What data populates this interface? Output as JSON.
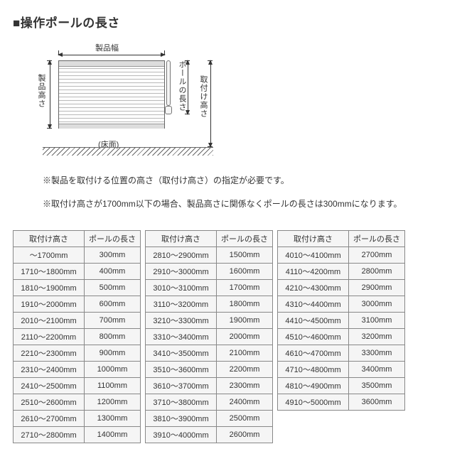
{
  "title": "■操作ポールの長さ",
  "diagram": {
    "label_width": "製品幅",
    "label_height": "製品高さ",
    "label_pole_length": "ポールの長さ",
    "label_mount_height": "取付け高さ",
    "label_floor": "(床面)"
  },
  "notes": {
    "n1": "※製品を取付ける位置の高さ（取付け高さ）の指定が必要です。",
    "n2": "※取付け高さが1700mm以下の場合、製品高さに関係なくポールの長さは300mmになります。"
  },
  "table_headers": {
    "col1": "取付け高さ",
    "col2": "ポールの長さ"
  },
  "table1": [
    {
      "h": "〜1700mm",
      "p": "300mm"
    },
    {
      "h": "1710〜1800mm",
      "p": "400mm"
    },
    {
      "h": "1810〜1900mm",
      "p": "500mm"
    },
    {
      "h": "1910〜2000mm",
      "p": "600mm"
    },
    {
      "h": "2010〜2100mm",
      "p": "700mm"
    },
    {
      "h": "2110〜2200mm",
      "p": "800mm"
    },
    {
      "h": "2210〜2300mm",
      "p": "900mm"
    },
    {
      "h": "2310〜2400mm",
      "p": "1000mm"
    },
    {
      "h": "2410〜2500mm",
      "p": "1100mm"
    },
    {
      "h": "2510〜2600mm",
      "p": "1200mm"
    },
    {
      "h": "2610〜2700mm",
      "p": "1300mm"
    },
    {
      "h": "2710〜2800mm",
      "p": "1400mm"
    }
  ],
  "table2": [
    {
      "h": "2810〜2900mm",
      "p": "1500mm"
    },
    {
      "h": "2910〜3000mm",
      "p": "1600mm"
    },
    {
      "h": "3010〜3100mm",
      "p": "1700mm"
    },
    {
      "h": "3110〜3200mm",
      "p": "1800mm"
    },
    {
      "h": "3210〜3300mm",
      "p": "1900mm"
    },
    {
      "h": "3310〜3400mm",
      "p": "2000mm"
    },
    {
      "h": "3410〜3500mm",
      "p": "2100mm"
    },
    {
      "h": "3510〜3600mm",
      "p": "2200mm"
    },
    {
      "h": "3610〜3700mm",
      "p": "2300mm"
    },
    {
      "h": "3710〜3800mm",
      "p": "2400mm"
    },
    {
      "h": "3810〜3900mm",
      "p": "2500mm"
    },
    {
      "h": "3910〜4000mm",
      "p": "2600mm"
    }
  ],
  "table3": [
    {
      "h": "4010〜4100mm",
      "p": "2700mm"
    },
    {
      "h": "4110〜4200mm",
      "p": "2800mm"
    },
    {
      "h": "4210〜4300mm",
      "p": "2900mm"
    },
    {
      "h": "4310〜4400mm",
      "p": "3000mm"
    },
    {
      "h": "4410〜4500mm",
      "p": "3100mm"
    },
    {
      "h": "4510〜4600mm",
      "p": "3200mm"
    },
    {
      "h": "4610〜4700mm",
      "p": "3300mm"
    },
    {
      "h": "4710〜4800mm",
      "p": "3400mm"
    },
    {
      "h": "4810〜4900mm",
      "p": "3500mm"
    },
    {
      "h": "4910〜5000mm",
      "p": "3600mm"
    }
  ],
  "style": {
    "font_size_title": 17,
    "font_size_body": 12,
    "font_size_table": 11,
    "header_bg": "#f5f5f5",
    "border_color": "#888",
    "text_color": "#333"
  }
}
